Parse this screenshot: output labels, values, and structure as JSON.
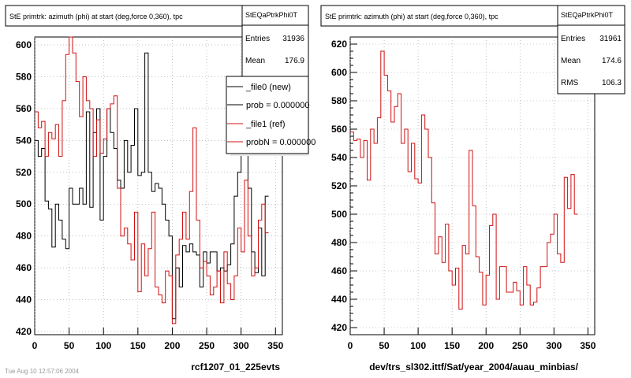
{
  "chart_data": [
    {
      "type": "line",
      "title": "StE primtrk: azimuth (phi) at start (deg,force 0,360), tpc",
      "xlabel": "rcf1207_01_225evts",
      "ylabel": "",
      "xlim": [
        0,
        360
      ],
      "ylim": [
        418,
        605
      ],
      "xticks": [
        0,
        50,
        100,
        150,
        200,
        250,
        300,
        350
      ],
      "yticks": [
        420,
        440,
        460,
        480,
        500,
        520,
        540,
        560,
        580,
        600
      ],
      "grid": true,
      "stats": {
        "name": "StEQaPtrkPhi0T",
        "entries_label": "Entries",
        "entries": "31936",
        "mean_label": "Mean",
        "mean": "176.9"
      },
      "legend_position": "top-right",
      "legend": [
        {
          "label": "_file0 (new)",
          "color": "#000000"
        },
        {
          "label": "prob = 0.000000",
          "color": "#000000"
        },
        {
          "label": "_file1 (ref)",
          "color": "#d01010"
        },
        {
          "label": "probN = 0.000000",
          "color": "#d01010"
        }
      ],
      "bin_width": 5,
      "series": [
        {
          "name": "_file0 (new)",
          "color": "#000000",
          "values": [
            540,
            530,
            535,
            502,
            497,
            473,
            500,
            490,
            478,
            472,
            510,
            500,
            500,
            510,
            500,
            558,
            498,
            545,
            560,
            490,
            530,
            560,
            545,
            535,
            515,
            510,
            540,
            520,
            537,
            560,
            518,
            520,
            595,
            520,
            508,
            513,
            510,
            500,
            490,
            480,
            428,
            460,
            448,
            474,
            470,
            475,
            470,
            468,
            448,
            470,
            463,
            470,
            470,
            458,
            460,
            458,
            462,
            475,
            505,
            520,
            532,
            540,
            510,
            470,
            457,
            485,
            455,
            505
          ]
        },
        {
          "name": "_file1 (ref)",
          "color": "#d01010",
          "values": [
            558,
            548,
            552,
            530,
            545,
            541,
            550,
            530,
            565,
            594,
            605,
            595,
            577,
            555,
            580,
            565,
            560,
            530,
            553,
            532,
            541,
            560,
            563,
            568,
            510,
            480,
            485,
            475,
            465,
            495,
            445,
            475,
            455,
            472,
            495,
            448,
            443,
            438,
            458,
            455,
            425,
            468,
            478,
            495,
            478,
            508,
            548,
            490,
            460,
            464,
            455,
            443,
            448,
            458,
            438,
            470,
            450,
            440,
            455,
            485,
            470,
            515,
            480,
            455,
            460,
            490,
            500,
            482
          ]
        }
      ]
    },
    {
      "type": "line",
      "title": "StE primtrk: azimuth (phi) at start (deg,force 0,360), tpc",
      "xlabel": "dev/trs_sl302.ittf/Sat/year_2004/auau_minbias/",
      "ylabel": "",
      "xlim": [
        0,
        360
      ],
      "ylim": [
        415,
        625
      ],
      "xticks": [
        0,
        50,
        100,
        150,
        200,
        250,
        300,
        350
      ],
      "yticks": [
        420,
        440,
        460,
        480,
        500,
        520,
        540,
        560,
        580,
        600,
        620
      ],
      "grid": true,
      "stats": {
        "name": "StEQaPtrkPhi0T",
        "entries_label": "Entries",
        "entries": "31961",
        "mean_label": "Mean",
        "mean": "174.6",
        "rms_label": "RMS",
        "rms": "106.3"
      },
      "bin_width": 5,
      "series": [
        {
          "name": "_file1 (ref)",
          "color": "#d01010",
          "values": [
            558,
            552,
            553,
            540,
            552,
            524,
            560,
            550,
            568,
            615,
            598,
            587,
            565,
            576,
            585,
            550,
            560,
            530,
            550,
            525,
            522,
            570,
            560,
            540,
            508,
            472,
            484,
            466,
            493,
            460,
            450,
            462,
            433,
            478,
            472,
            545,
            506,
            470,
            459,
            436,
            457,
            492,
            500,
            440,
            463,
            463,
            445,
            445,
            452,
            446,
            436,
            463,
            450,
            436,
            438,
            448,
            463,
            463,
            480,
            486,
            500,
            472,
            466,
            526,
            504,
            528,
            500
          ]
        }
      ]
    }
  ],
  "footer_text": "Tue Aug 10 12:57:06 2004"
}
